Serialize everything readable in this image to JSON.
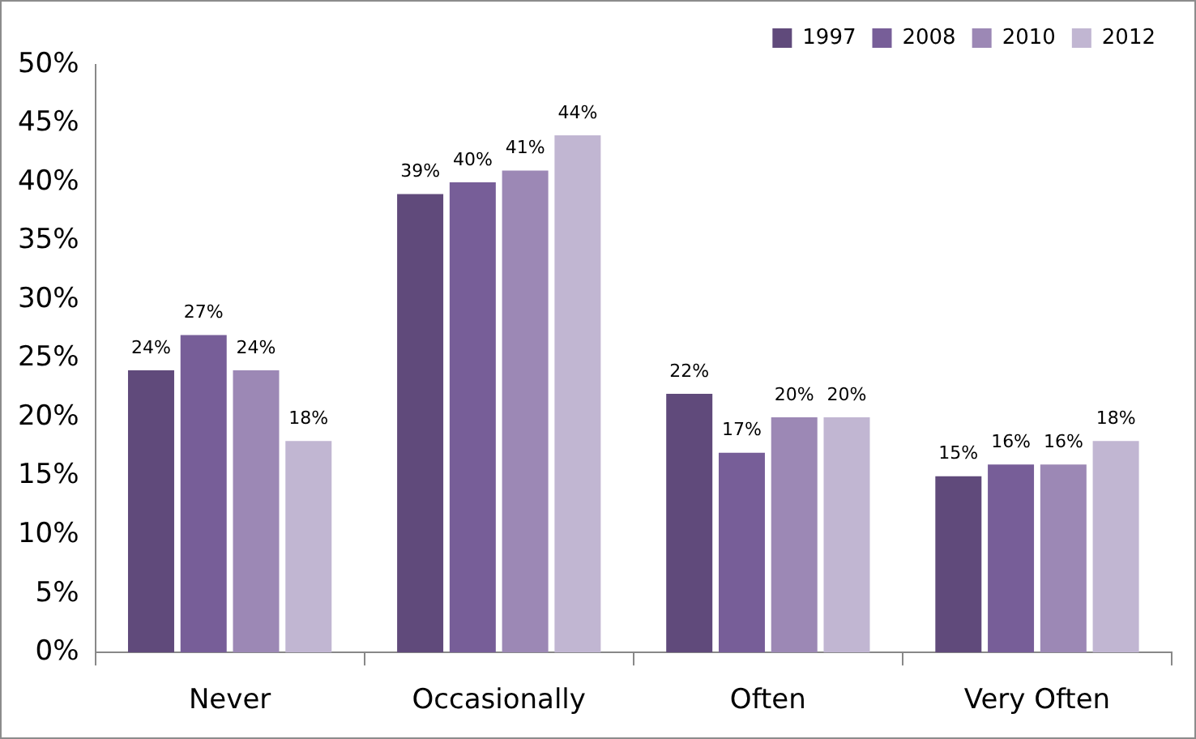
{
  "chart_data": {
    "type": "bar",
    "categories": [
      "Never",
      "Occasionally",
      "Often",
      "Very Often"
    ],
    "series": [
      {
        "name": "1997",
        "color": "#604a7b",
        "values": [
          24,
          39,
          22,
          15
        ],
        "value_labels": [
          "24%",
          "39%",
          "22%",
          "15%"
        ]
      },
      {
        "name": "2008",
        "color": "#775e98",
        "values": [
          27,
          40,
          17,
          16
        ],
        "value_labels": [
          "27%",
          "40%",
          "17%",
          "16%"
        ]
      },
      {
        "name": "2010",
        "color": "#9c88b5",
        "values": [
          24,
          41,
          20,
          16
        ],
        "value_labels": [
          "24%",
          "41%",
          "20%",
          "16%"
        ]
      },
      {
        "name": "2012",
        "color": "#c1b6d2",
        "values": [
          18,
          44,
          20,
          18
        ],
        "value_labels": [
          "18%",
          "44%",
          "20%",
          "18%"
        ]
      }
    ],
    "ylim": [
      0,
      50
    ],
    "yticks": [
      {
        "value": 0,
        "label": "0%"
      },
      {
        "value": 5,
        "label": "5%"
      },
      {
        "value": 10,
        "label": "10%"
      },
      {
        "value": 15,
        "label": "15%"
      },
      {
        "value": 20,
        "label": "20%"
      },
      {
        "value": 25,
        "label": "25%"
      },
      {
        "value": 30,
        "label": "30%"
      },
      {
        "value": 35,
        "label": "35%"
      },
      {
        "value": 40,
        "label": "40%"
      },
      {
        "value": 45,
        "label": "45%"
      },
      {
        "value": 50,
        "label": "50%"
      }
    ],
    "grid": false,
    "legend": "top right"
  }
}
